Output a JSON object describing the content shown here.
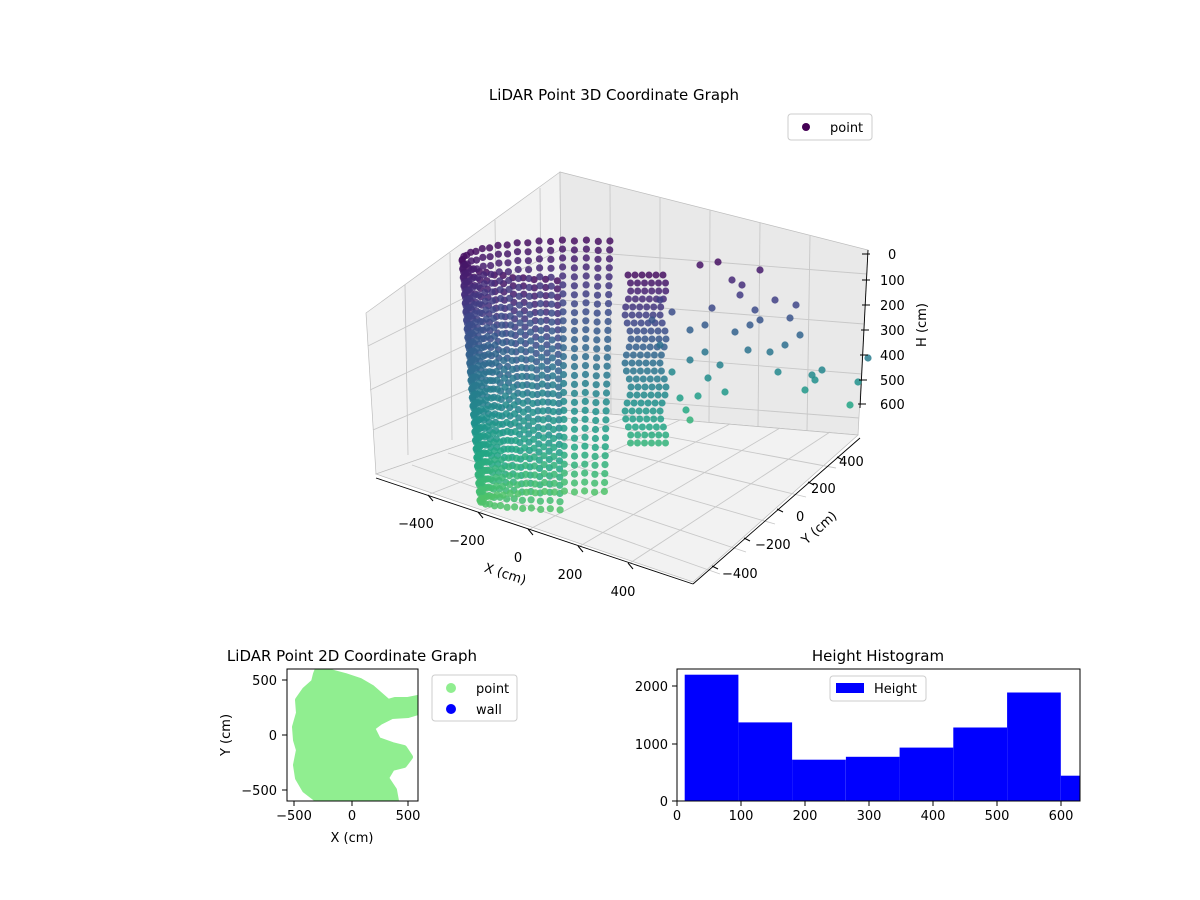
{
  "charts": {
    "three_d": {
      "title": "LiDAR Point 3D Coordinate Graph",
      "legend": [
        "point"
      ],
      "xlabel": "X (cm)",
      "ylabel": "Y (cm)",
      "zlabel": "H (cm)",
      "xticks": [
        "−400",
        "−200",
        "0",
        "200",
        "400"
      ],
      "yticks": [
        "−400",
        "−200",
        "0",
        "200",
        "400"
      ],
      "zticks": [
        "0",
        "100",
        "200",
        "300",
        "400",
        "500",
        "600"
      ]
    },
    "two_d": {
      "title": "LiDAR Point 2D Coordinate Graph",
      "xlabel": "X (cm)",
      "ylabel": "Y (cm)",
      "xticks": [
        "−500",
        "0",
        "500"
      ],
      "yticks": [
        "500",
        "0",
        "−500"
      ],
      "legend": [
        "point",
        "wall"
      ]
    },
    "hist": {
      "title": "Height Histogram",
      "legend": [
        "Height"
      ],
      "xticks": [
        "0",
        "100",
        "200",
        "300",
        "400",
        "500",
        "600"
      ],
      "yticks": [
        "0",
        "1000",
        "2000"
      ]
    }
  },
  "colors": {
    "point_2d": "#90ee90",
    "wall": "#0000ff",
    "hist_bar": "#0000ff",
    "viridis_dark": "#440154",
    "viridis_teal": "#21918c",
    "viridis_green": "#5ec962"
  },
  "chart_data": [
    {
      "type": "scatter",
      "title": "LiDAR Point 3D Coordinate Graph",
      "xlabel": "X (cm)",
      "ylabel": "Y (cm)",
      "zlabel": "H (cm)",
      "xlim": [
        -550,
        550
      ],
      "ylim": [
        -550,
        550
      ],
      "zlim": [
        620,
        0
      ],
      "colormap": "viridis",
      "series": [
        {
          "name": "point"
        }
      ]
    },
    {
      "type": "scatter",
      "title": "LiDAR Point 2D Coordinate Graph",
      "xlabel": "X (cm)",
      "ylabel": "Y (cm)",
      "xlim": [
        -580,
        580
      ],
      "ylim": [
        -580,
        580
      ],
      "series": [
        {
          "name": "point",
          "color": "#90ee90"
        },
        {
          "name": "wall",
          "color": "#0000ff",
          "values": []
        }
      ]
    },
    {
      "type": "bar",
      "title": "Height Histogram",
      "bins": [
        {
          "from": 12,
          "to": 96,
          "count": 2200
        },
        {
          "from": 96,
          "to": 180,
          "count": 1370
        },
        {
          "from": 180,
          "to": 264,
          "count": 720
        },
        {
          "from": 264,
          "to": 348,
          "count": 770
        },
        {
          "from": 348,
          "to": 432,
          "count": 930
        },
        {
          "from": 432,
          "to": 516,
          "count": 1280
        },
        {
          "from": 516,
          "to": 600,
          "count": 1890
        },
        {
          "from": 600,
          "to": 684,
          "count": 440
        }
      ],
      "xlim": [
        0,
        630
      ],
      "ylim": [
        0,
        2300
      ],
      "series": [
        {
          "name": "Height",
          "color": "#0000ff"
        }
      ]
    }
  ]
}
